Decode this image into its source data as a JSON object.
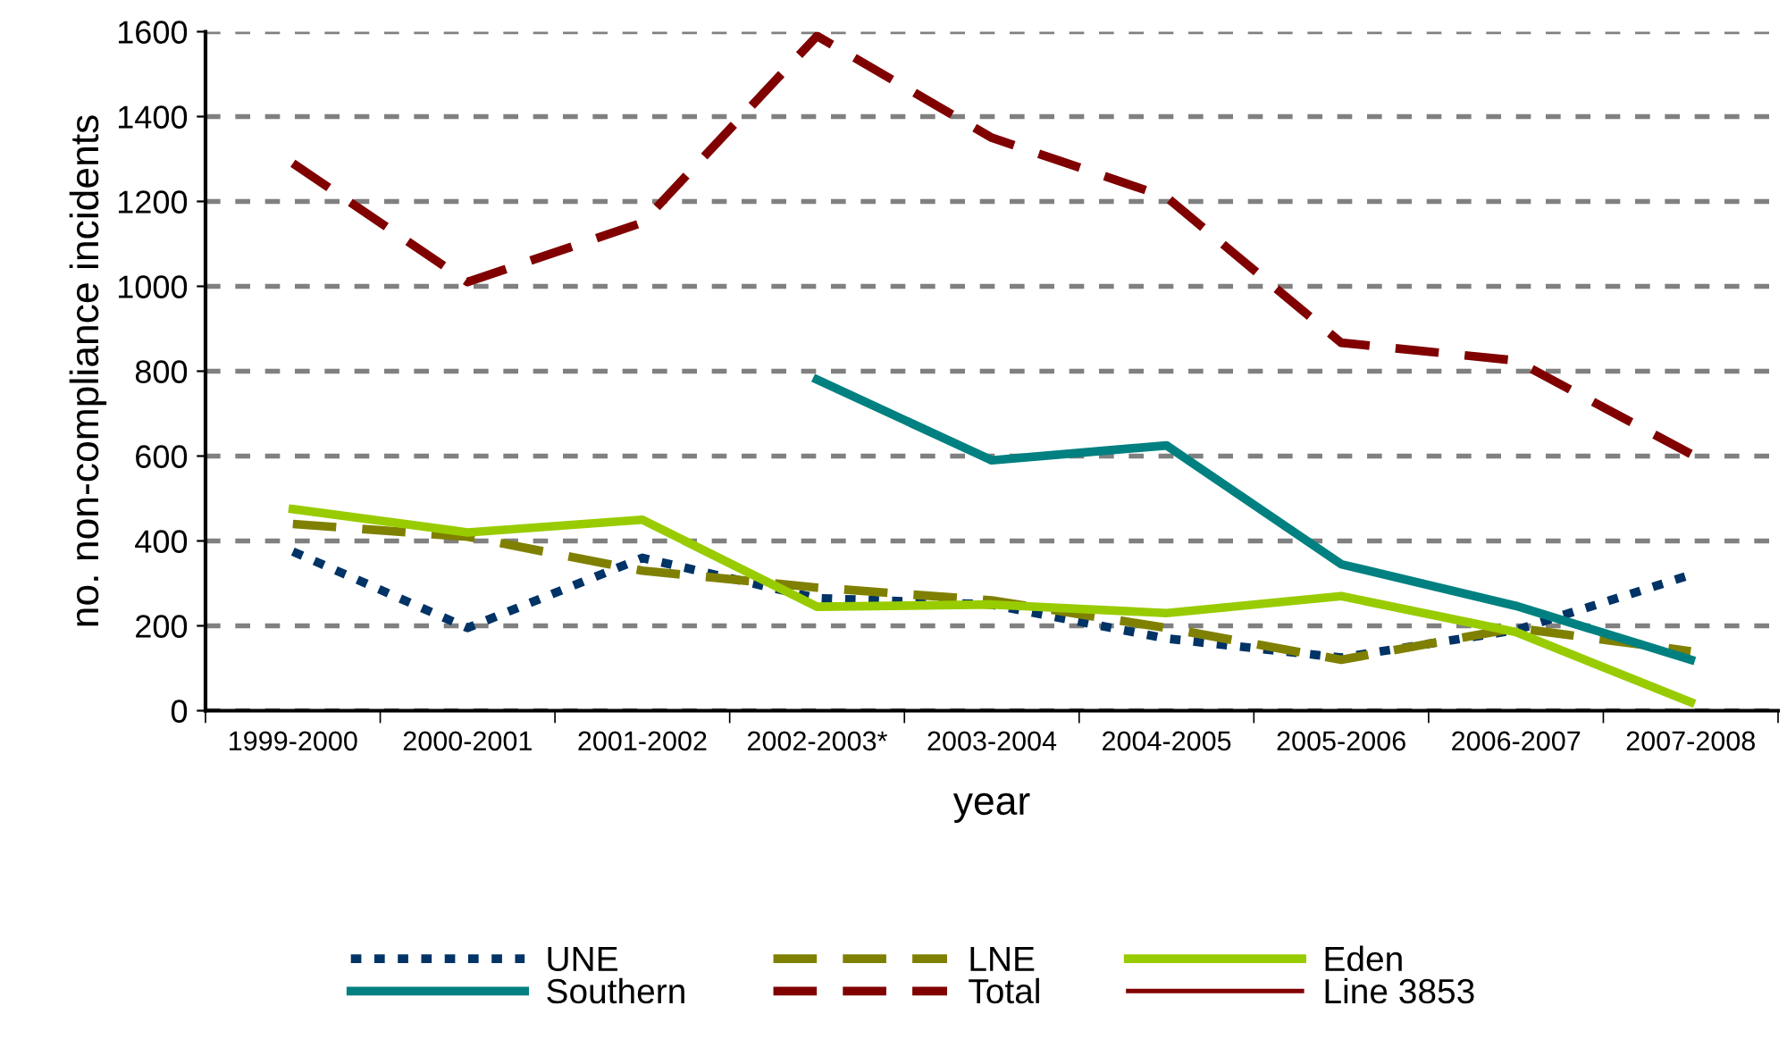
{
  "chart_data": {
    "type": "line",
    "xlabel": "year",
    "ylabel": "no. non-compliance incidents",
    "categories": [
      "1999-2000",
      "2000-2001",
      "2001-2002",
      "2002-2003*",
      "2003-2004",
      "2004-2005",
      "2005-2006",
      "2006-2007",
      "2007-2008"
    ],
    "series": [
      {
        "name": "UNE",
        "color": "#003366",
        "line_style": "dotted",
        "values": [
          375,
          195,
          360,
          265,
          250,
          170,
          125,
          190,
          320
        ]
      },
      {
        "name": "LNE",
        "color": "#808000",
        "line_style": "dashed",
        "values": [
          440,
          410,
          330,
          290,
          260,
          195,
          120,
          195,
          140
        ]
      },
      {
        "name": "Eden",
        "color": "#99cc00",
        "line_style": "solid",
        "values": [
          475,
          420,
          450,
          245,
          250,
          230,
          270,
          185,
          20
        ]
      },
      {
        "name": "Southern",
        "color": "#008080",
        "line_style": "solid",
        "values": [
          null,
          null,
          null,
          780,
          590,
          625,
          345,
          247,
          120
        ]
      },
      {
        "name": "Total",
        "color": "#800000",
        "line_style": "dashed",
        "values": [
          1290,
          1010,
          1150,
          1590,
          1350,
          1210,
          867,
          825,
          605
        ]
      },
      {
        "name": "Line 3853",
        "color": "#800000",
        "line_style": "solid",
        "values": [
          null,
          null,
          null,
          null,
          null,
          null,
          null,
          null,
          null
        ]
      }
    ],
    "ylim": [
      0,
      1600
    ],
    "yticks": [
      0,
      200,
      400,
      600,
      800,
      1000,
      1200,
      1400,
      1600
    ],
    "grid": "y",
    "legend": "bottom",
    "marker": "none"
  }
}
